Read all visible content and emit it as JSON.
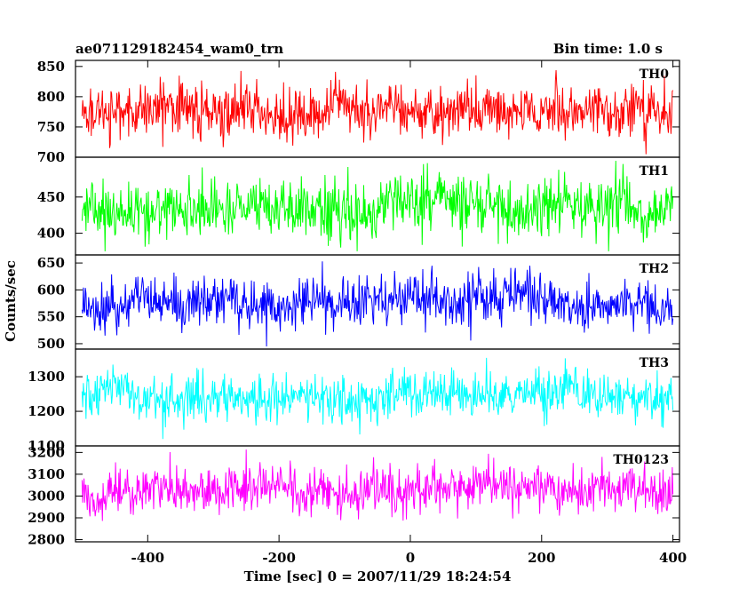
{
  "chart_data": {
    "type": "line",
    "title_left": "ae071129182454_wam0_trn",
    "title_right": "Bin time: 1.0 s",
    "xlabel": "Time [sec] 0 = 2007/11/29 18:24:54",
    "ylabel": "Counts/sec",
    "xlim": [
      -510,
      410
    ],
    "x_ticks": [
      -400,
      -200,
      0,
      200,
      400
    ],
    "x_range": [
      -500,
      400
    ],
    "x_step": 1,
    "panels": [
      {
        "name": "TH0",
        "color": "#ff0000",
        "ylim": [
          700,
          860
        ],
        "y_ticks": [
          700,
          750,
          800,
          850
        ],
        "mean": 777,
        "noise": 22,
        "clip_low": 705,
        "clip_high": 858
      },
      {
        "name": "TH1",
        "color": "#00ff00",
        "ylim": [
          370,
          505
        ],
        "y_ticks": [
          400,
          450
        ],
        "mean": 432,
        "noise": 20,
        "clip_low": 375,
        "clip_high": 500
      },
      {
        "name": "TH2",
        "color": "#0000ff",
        "ylim": [
          490,
          665
        ],
        "y_ticks": [
          500,
          550,
          600,
          650
        ],
        "mean": 575,
        "noise": 24,
        "clip_low": 495,
        "clip_high": 660
      },
      {
        "name": "TH3",
        "color": "#00ffff",
        "ylim": [
          1100,
          1380
        ],
        "y_ticks": [
          1100,
          1200,
          1300
        ],
        "mean": 1238,
        "noise": 35,
        "clip_low": 1120,
        "clip_high": 1370
      },
      {
        "name": "TH0123",
        "color": "#ff00ff",
        "ylim": [
          2790,
          3230
        ],
        "y_ticks": [
          2800,
          2900,
          3000,
          3100,
          3200
        ],
        "mean": 3020,
        "noise": 55,
        "clip_low": 2800,
        "clip_high": 3220
      }
    ]
  }
}
